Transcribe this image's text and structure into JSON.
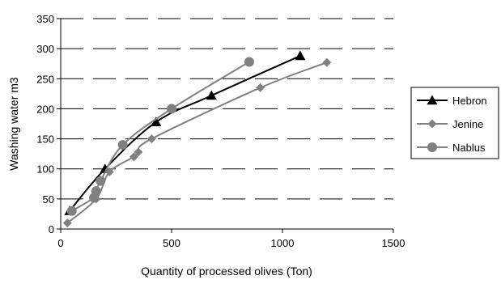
{
  "chart_data": {
    "type": "line",
    "title": "",
    "xlabel": "Quantity of processed olives (Ton)",
    "ylabel": "Washing water  m3",
    "xlim": [
      0,
      1500
    ],
    "ylim": [
      0,
      350
    ],
    "xticks": [
      0,
      500,
      1000,
      1500
    ],
    "yticks": [
      0,
      50,
      100,
      150,
      200,
      250,
      300,
      350
    ],
    "grid": "horizontal dashed",
    "legend_position": "right",
    "series": [
      {
        "name": "Hebron",
        "color": "#000000",
        "marker": "triangle",
        "x": [
          40,
          200,
          430,
          680,
          1080
        ],
        "y": [
          30,
          100,
          178,
          222,
          288
        ]
      },
      {
        "name": "Jenine",
        "color": "#808080",
        "marker": "diamond",
        "x": [
          30,
          160,
          220,
          330,
          350,
          410,
          900,
          1200
        ],
        "y": [
          10,
          50,
          95,
          120,
          128,
          150,
          235,
          277
        ]
      },
      {
        "name": "Nablus",
        "color": "#808080",
        "marker": "circle",
        "x": [
          50,
          150,
          160,
          180,
          280,
          500,
          850
        ],
        "y": [
          30,
          52,
          63,
          80,
          140,
          200,
          278
        ]
      }
    ]
  }
}
